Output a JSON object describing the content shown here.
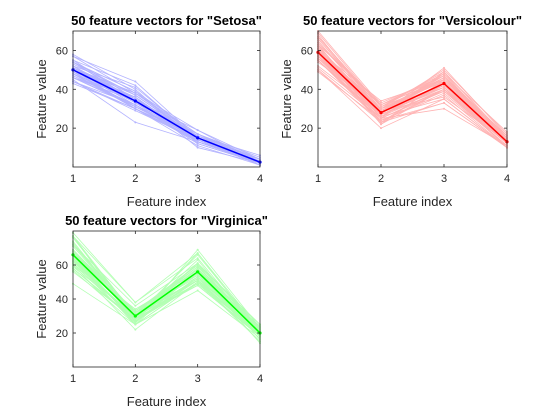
{
  "chart_data": [
    {
      "type": "line",
      "title": "50 feature vectors for \"Setosa\"",
      "xlabel": "Feature index",
      "ylabel": "Feature value",
      "x": [
        1,
        2,
        3,
        4
      ],
      "xlim": [
        1,
        4
      ],
      "ylim": [
        0,
        70
      ],
      "xticks": [
        "1",
        "2",
        "3",
        "4"
      ],
      "yticks": [
        "20",
        "40",
        "60"
      ],
      "grid": false,
      "mean_color": "#0000ff",
      "sample_color": "#b3b3ff",
      "mean": [
        50,
        34,
        15,
        2.5
      ],
      "samples": [
        [
          51,
          35,
          14,
          2
        ],
        [
          49,
          30,
          14,
          2
        ],
        [
          47,
          32,
          13,
          2
        ],
        [
          46,
          31,
          15,
          2
        ],
        [
          50,
          36,
          14,
          2
        ],
        [
          54,
          39,
          17,
          4
        ],
        [
          46,
          34,
          14,
          3
        ],
        [
          50,
          34,
          15,
          2
        ],
        [
          44,
          29,
          14,
          2
        ],
        [
          49,
          31,
          15,
          1
        ],
        [
          54,
          37,
          15,
          2
        ],
        [
          48,
          34,
          16,
          2
        ],
        [
          48,
          30,
          14,
          1
        ],
        [
          43,
          30,
          11,
          1
        ],
        [
          58,
          40,
          12,
          2
        ],
        [
          57,
          44,
          15,
          4
        ],
        [
          54,
          39,
          13,
          4
        ],
        [
          51,
          35,
          14,
          3
        ],
        [
          57,
          38,
          17,
          3
        ],
        [
          51,
          38,
          15,
          3
        ],
        [
          54,
          34,
          17,
          2
        ],
        [
          51,
          37,
          15,
          4
        ],
        [
          46,
          36,
          10,
          2
        ],
        [
          51,
          33,
          17,
          5
        ],
        [
          48,
          34,
          19,
          2
        ],
        [
          50,
          30,
          16,
          2
        ],
        [
          50,
          34,
          16,
          4
        ],
        [
          52,
          35,
          15,
          2
        ],
        [
          52,
          34,
          14,
          2
        ],
        [
          47,
          32,
          16,
          2
        ],
        [
          48,
          31,
          16,
          2
        ],
        [
          54,
          34,
          15,
          4
        ],
        [
          52,
          41,
          15,
          1
        ],
        [
          55,
          42,
          14,
          2
        ],
        [
          49,
          31,
          15,
          2
        ],
        [
          50,
          32,
          12,
          2
        ],
        [
          55,
          35,
          13,
          2
        ],
        [
          49,
          36,
          14,
          1
        ],
        [
          44,
          30,
          13,
          2
        ],
        [
          51,
          34,
          15,
          2
        ],
        [
          50,
          35,
          13,
          3
        ],
        [
          45,
          23,
          13,
          3
        ],
        [
          44,
          32,
          13,
          2
        ],
        [
          50,
          35,
          16,
          6
        ],
        [
          51,
          38,
          19,
          4
        ],
        [
          48,
          30,
          14,
          3
        ],
        [
          51,
          38,
          16,
          2
        ],
        [
          46,
          32,
          14,
          2
        ],
        [
          53,
          37,
          15,
          2
        ],
        [
          50,
          33,
          14,
          2
        ]
      ]
    },
    {
      "type": "line",
      "title": "50 feature vectors for \"Versicolour\"",
      "xlabel": "Feature index",
      "ylabel": "Feature value",
      "x": [
        1,
        2,
        3,
        4
      ],
      "xlim": [
        1,
        4
      ],
      "ylim": [
        0,
        70
      ],
      "xticks": [
        "1",
        "2",
        "3",
        "4"
      ],
      "yticks": [
        "20",
        "40",
        "60"
      ],
      "grid": false,
      "mean_color": "#ff0000",
      "sample_color": "#ffb3b3",
      "mean": [
        59,
        28,
        43,
        13
      ],
      "samples": [
        [
          70,
          32,
          47,
          14
        ],
        [
          64,
          32,
          45,
          15
        ],
        [
          69,
          31,
          49,
          15
        ],
        [
          55,
          23,
          40,
          13
        ],
        [
          65,
          28,
          46,
          15
        ],
        [
          57,
          28,
          45,
          13
        ],
        [
          63,
          33,
          47,
          16
        ],
        [
          49,
          24,
          33,
          10
        ],
        [
          66,
          29,
          46,
          13
        ],
        [
          52,
          27,
          39,
          14
        ],
        [
          50,
          20,
          35,
          10
        ],
        [
          59,
          30,
          42,
          15
        ],
        [
          60,
          22,
          40,
          10
        ],
        [
          61,
          29,
          47,
          14
        ],
        [
          56,
          29,
          36,
          13
        ],
        [
          67,
          31,
          44,
          14
        ],
        [
          56,
          30,
          45,
          15
        ],
        [
          58,
          27,
          41,
          10
        ],
        [
          62,
          22,
          45,
          15
        ],
        [
          56,
          25,
          39,
          11
        ],
        [
          59,
          32,
          48,
          18
        ],
        [
          61,
          28,
          40,
          13
        ],
        [
          63,
          25,
          49,
          15
        ],
        [
          61,
          28,
          47,
          12
        ],
        [
          64,
          29,
          43,
          13
        ],
        [
          66,
          30,
          44,
          14
        ],
        [
          68,
          28,
          48,
          14
        ],
        [
          67,
          30,
          50,
          17
        ],
        [
          60,
          29,
          45,
          15
        ],
        [
          57,
          26,
          35,
          10
        ],
        [
          55,
          24,
          38,
          11
        ],
        [
          55,
          24,
          37,
          10
        ],
        [
          58,
          27,
          39,
          12
        ],
        [
          60,
          27,
          51,
          16
        ],
        [
          54,
          30,
          45,
          15
        ],
        [
          60,
          34,
          45,
          16
        ],
        [
          67,
          31,
          47,
          15
        ],
        [
          63,
          23,
          44,
          13
        ],
        [
          56,
          30,
          41,
          13
        ],
        [
          55,
          25,
          40,
          13
        ],
        [
          55,
          26,
          44,
          12
        ],
        [
          61,
          30,
          46,
          14
        ],
        [
          58,
          26,
          40,
          12
        ],
        [
          50,
          23,
          33,
          10
        ],
        [
          56,
          27,
          42,
          13
        ],
        [
          57,
          30,
          42,
          12
        ],
        [
          57,
          29,
          42,
          13
        ],
        [
          62,
          29,
          43,
          13
        ],
        [
          51,
          25,
          30,
          11
        ],
        [
          57,
          28,
          41,
          13
        ]
      ]
    },
    {
      "type": "line",
      "title": "50 feature vectors for \"Virginica\"",
      "xlabel": "Feature index",
      "ylabel": "Feature value",
      "x": [
        1,
        2,
        3,
        4
      ],
      "xlim": [
        1,
        4
      ],
      "ylim": [
        0,
        80
      ],
      "xticks": [
        "1",
        "2",
        "3",
        "4"
      ],
      "yticks": [
        "20",
        "40",
        "60"
      ],
      "grid": false,
      "mean_color": "#00ff00",
      "sample_color": "#b3ffb3",
      "mean": [
        66,
        30,
        56,
        20
      ],
      "samples": [
        [
          63,
          33,
          60,
          25
        ],
        [
          58,
          27,
          51,
          19
        ],
        [
          71,
          30,
          59,
          21
        ],
        [
          63,
          29,
          56,
          18
        ],
        [
          65,
          30,
          58,
          22
        ],
        [
          76,
          30,
          66,
          21
        ],
        [
          49,
          25,
          45,
          17
        ],
        [
          73,
          29,
          63,
          18
        ],
        [
          67,
          25,
          58,
          18
        ],
        [
          72,
          36,
          61,
          25
        ],
        [
          65,
          32,
          51,
          20
        ],
        [
          64,
          27,
          53,
          19
        ],
        [
          68,
          30,
          55,
          21
        ],
        [
          57,
          25,
          50,
          20
        ],
        [
          58,
          28,
          51,
          24
        ],
        [
          64,
          32,
          53,
          23
        ],
        [
          65,
          30,
          55,
          18
        ],
        [
          77,
          38,
          67,
          22
        ],
        [
          77,
          26,
          69,
          23
        ],
        [
          60,
          22,
          50,
          15
        ],
        [
          69,
          32,
          57,
          23
        ],
        [
          56,
          28,
          49,
          20
        ],
        [
          77,
          28,
          67,
          20
        ],
        [
          63,
          27,
          49,
          18
        ],
        [
          67,
          33,
          57,
          21
        ],
        [
          72,
          32,
          60,
          18
        ],
        [
          62,
          28,
          48,
          18
        ],
        [
          61,
          30,
          49,
          18
        ],
        [
          64,
          28,
          56,
          21
        ],
        [
          72,
          30,
          58,
          16
        ],
        [
          74,
          28,
          61,
          19
        ],
        [
          79,
          38,
          64,
          20
        ],
        [
          64,
          28,
          56,
          22
        ],
        [
          63,
          28,
          51,
          15
        ],
        [
          61,
          26,
          56,
          14
        ],
        [
          77,
          30,
          61,
          23
        ],
        [
          63,
          34,
          56,
          24
        ],
        [
          64,
          31,
          55,
          18
        ],
        [
          60,
          30,
          48,
          18
        ],
        [
          69,
          31,
          54,
          21
        ],
        [
          67,
          31,
          56,
          24
        ],
        [
          69,
          31,
          51,
          23
        ],
        [
          58,
          27,
          51,
          19
        ],
        [
          68,
          32,
          59,
          23
        ],
        [
          67,
          33,
          57,
          25
        ],
        [
          67,
          30,
          52,
          23
        ],
        [
          63,
          25,
          50,
          19
        ],
        [
          65,
          30,
          52,
          20
        ],
        [
          62,
          34,
          54,
          23
        ],
        [
          59,
          30,
          51,
          18
        ]
      ]
    }
  ]
}
